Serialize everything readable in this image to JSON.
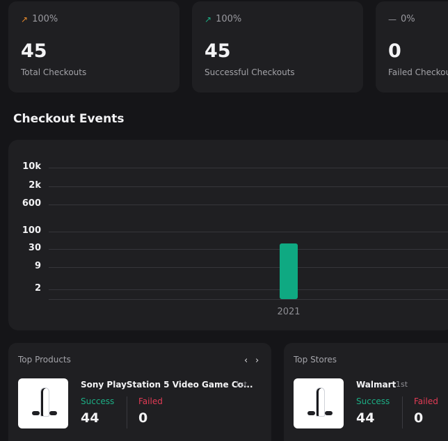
{
  "stats": [
    {
      "trend_icon": "arrow-up-right-icon",
      "trend_color": "#e88a2c",
      "trend": "100%",
      "value": "45",
      "label": "Total Checkouts"
    },
    {
      "trend_icon": "arrow-up-right-icon",
      "trend_color": "#1cae85",
      "trend": "100%",
      "value": "45",
      "label": "Successful Checkouts"
    },
    {
      "trend_icon": "dash-icon",
      "trend_color": "#9a9aa0",
      "trend": "0%",
      "value": "0",
      "label": "Failed Checkouts"
    }
  ],
  "section_title": "Checkout Events",
  "chart_data": {
    "type": "bar",
    "categories": [
      "2021"
    ],
    "values": [
      45
    ],
    "yscale": "log",
    "yticks": [
      "10k",
      "2k",
      "600",
      "100",
      "30",
      "9",
      "2"
    ],
    "ytick_values": [
      10000,
      2000,
      600,
      100,
      30,
      9,
      2
    ],
    "grid": true,
    "bar_color": "#0fa982"
  },
  "top_products": {
    "title": "Top Products",
    "prev_icon": "‹",
    "next_icon": "›",
    "item": {
      "name": "Sony PlayStation 5 Video Game Co...",
      "rank": "1st",
      "success_label": "Success",
      "success_value": "44",
      "failed_label": "Failed",
      "failed_value": "0"
    }
  },
  "top_stores": {
    "title": "Top Stores",
    "item": {
      "name": "Walmart",
      "rank": "1st",
      "success_label": "Success",
      "success_value": "44",
      "failed_label": "Failed",
      "failed_value": "0"
    }
  }
}
